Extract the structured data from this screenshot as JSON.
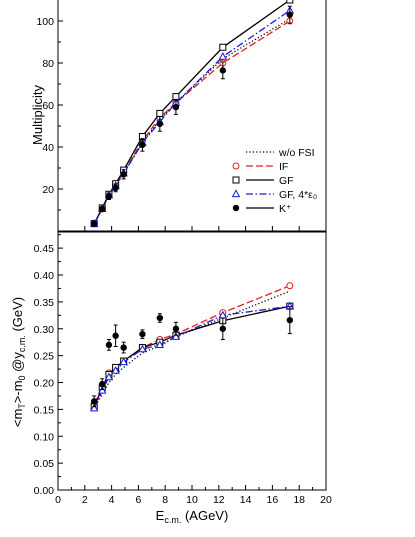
{
  "chart_data": [
    {
      "type": "line",
      "panel": "top",
      "xlabel": "",
      "ylabel": "Multiplicity",
      "xlim": [
        0,
        20
      ],
      "ylim": [
        0,
        110
      ],
      "yticks": [
        20,
        40,
        60,
        80,
        100
      ],
      "legend": {
        "placement": "bottom-right",
        "entries": [
          {
            "label": "w/o FSI",
            "marker": "",
            "line": "dotted",
            "color": "#000000"
          },
          {
            "label": "IF",
            "marker": "circle-open",
            "line": "dashed",
            "color": "#e02020"
          },
          {
            "label": "GF",
            "marker": "square-open",
            "line": "solid",
            "color": "#000000"
          },
          {
            "label": "GF, 4*ε₀",
            "marker": "triangle-open",
            "line": "dashdot",
            "color": "#1a1adc"
          },
          {
            "label": "K⁺",
            "marker": "circle-filled",
            "line": "solid",
            "color": "#000000"
          }
        ]
      },
      "series": [
        {
          "name": "w/o FSI",
          "style": "dotted",
          "color": "#000000",
          "x": [
            2.7,
            3.3,
            3.8,
            4.3,
            4.9,
            6.3,
            7.6,
            8.8,
            12.3,
            17.3
          ],
          "y": [
            3.5,
            10.5,
            16.5,
            21.5,
            27.5,
            42,
            53,
            61,
            82,
            101
          ]
        },
        {
          "name": "IF",
          "style": "dashed",
          "color": "#e02020",
          "marker": "circle-open",
          "x": [
            2.7,
            3.3,
            3.8,
            4.3,
            4.9,
            6.3,
            7.6,
            8.8,
            12.3,
            17.3
          ],
          "y": [
            3.5,
            10.5,
            17,
            22,
            28,
            43,
            54,
            61,
            80,
            100
          ]
        },
        {
          "name": "GF",
          "style": "solid",
          "color": "#000000",
          "marker": "square-open",
          "x": [
            2.7,
            3.3,
            3.8,
            4.3,
            4.9,
            6.3,
            7.6,
            8.8,
            12.3,
            17.3
          ],
          "y": [
            3.5,
            11,
            17.5,
            22.5,
            29,
            45,
            56,
            64,
            87.5,
            110
          ]
        },
        {
          "name": "GF, 4*ε₀",
          "style": "dashdot",
          "color": "#1a1adc",
          "marker": "triangle-open",
          "x": [
            2.7,
            3.3,
            3.8,
            4.3,
            4.9,
            6.3,
            7.6,
            8.8,
            12.3,
            17.3
          ],
          "y": [
            3.5,
            10.5,
            17,
            21.5,
            27.5,
            42,
            52,
            61,
            83,
            105
          ]
        },
        {
          "name": "K⁺",
          "style": "points",
          "color": "#000000",
          "marker": "circle-filled",
          "x": [
            2.7,
            3.3,
            3.8,
            4.3,
            4.9,
            6.3,
            7.6,
            8.8,
            12.3,
            17.3
          ],
          "y": [
            3.5,
            10.5,
            16.5,
            20.5,
            27,
            41,
            51,
            59,
            76.5,
            103
          ],
          "err": [
            0.8,
            1.2,
            1.5,
            1.8,
            2.2,
            3,
            3.5,
            3.5,
            4,
            4
          ]
        }
      ]
    },
    {
      "type": "line",
      "panel": "bottom",
      "xlabel": "E_c.m. (AGeV)",
      "ylabel": "<m_T>-m_0 @y_c.m. (GeV)",
      "xlim": [
        0,
        20
      ],
      "ylim": [
        0,
        0.48
      ],
      "xticks": [
        0,
        2,
        4,
        6,
        8,
        10,
        12,
        14,
        16,
        18,
        20
      ],
      "yticks": [
        0.0,
        0.05,
        0.1,
        0.15,
        0.2,
        0.25,
        0.3,
        0.35,
        0.4,
        0.45
      ],
      "series": [
        {
          "name": "w/o FSI",
          "style": "dotted",
          "color": "#000000",
          "x": [
            2.7,
            3.3,
            3.8,
            4.3,
            4.9,
            6.3,
            7.6,
            8.8,
            12.3,
            17.3
          ],
          "y": [
            0.152,
            0.178,
            0.2,
            0.215,
            0.228,
            0.255,
            0.268,
            0.285,
            0.32,
            0.37
          ]
        },
        {
          "name": "IF",
          "style": "dashed",
          "color": "#e02020",
          "marker": "circle-open",
          "x": [
            2.7,
            3.3,
            3.8,
            4.3,
            4.9,
            6.3,
            7.6,
            8.8,
            12.3,
            17.3
          ],
          "y": [
            0.16,
            0.19,
            0.218,
            0.228,
            0.24,
            0.265,
            0.28,
            0.29,
            0.33,
            0.38
          ]
        },
        {
          "name": "GF",
          "style": "solid",
          "color": "#000000",
          "marker": "square-open",
          "x": [
            2.7,
            3.3,
            3.8,
            4.3,
            4.9,
            6.3,
            7.6,
            8.8,
            12.3,
            17.3
          ],
          "y": [
            0.155,
            0.19,
            0.215,
            0.228,
            0.24,
            0.265,
            0.275,
            0.288,
            0.315,
            0.342
          ]
        },
        {
          "name": "GF, 4*ε₀",
          "style": "dashdot",
          "color": "#1a1adc",
          "marker": "triangle-open",
          "x": [
            2.7,
            3.3,
            3.8,
            4.3,
            4.9,
            6.3,
            7.6,
            8.8,
            12.3,
            17.3
          ],
          "y": [
            0.152,
            0.185,
            0.21,
            0.222,
            0.238,
            0.262,
            0.27,
            0.285,
            0.325,
            0.342
          ]
        },
        {
          "name": "K⁺",
          "style": "points",
          "color": "#000000",
          "marker": "circle-filled",
          "x": [
            2.7,
            3.3,
            3.8,
            4.3,
            4.9,
            6.3,
            7.6,
            8.8,
            12.3,
            17.3
          ],
          "y": [
            0.165,
            0.197,
            0.27,
            0.287,
            0.265,
            0.29,
            0.32,
            0.3,
            0.3,
            0.316
          ],
          "err": [
            0.01,
            0.01,
            0.01,
            0.02,
            0.01,
            0.008,
            0.008,
            0.012,
            0.02,
            0.025
          ]
        }
      ]
    }
  ]
}
